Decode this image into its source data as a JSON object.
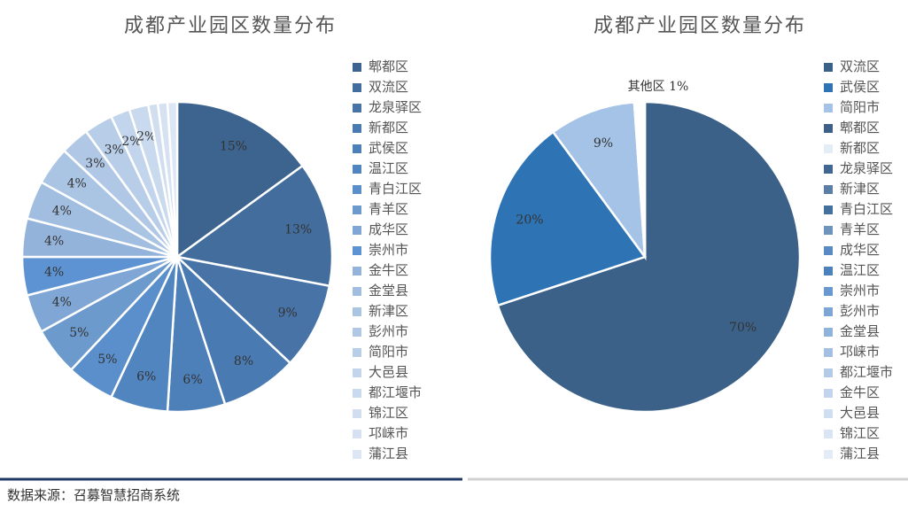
{
  "chart_data": [
    {
      "type": "pie",
      "title": "成都产业园区数量分布",
      "categories": [
        "郫都区",
        "双流区",
        "龙泉驿区",
        "新都区",
        "武侯区",
        "温江区",
        "青白江区",
        "青羊区",
        "成华区",
        "崇州市",
        "金牛区",
        "金堂县",
        "新津区",
        "彭州市",
        "简阳市",
        "大邑县",
        "都江堰市",
        "锦江区",
        "邛崃市",
        "蒲江县"
      ],
      "values": [
        15,
        13,
        9,
        8,
        6,
        6,
        5,
        5,
        4,
        4,
        4,
        4,
        4,
        3,
        3,
        2,
        2,
        1,
        1,
        1
      ],
      "value_labels": [
        "15%",
        "13%",
        "9%",
        "8%",
        "6%",
        "6%",
        "5%",
        "5%",
        "4%",
        "4%",
        "4%",
        "4%",
        "4%",
        "3%",
        "3%",
        "2%",
        "2%",
        null,
        null,
        null
      ],
      "colors": [
        "#3d648f",
        "#426d9c",
        "#4773a6",
        "#4a7ab2",
        "#4d7fb8",
        "#5185bf",
        "#5a8fcb",
        "#6d9acd",
        "#7fa6d4",
        "#5d93d2",
        "#93b3da",
        "#a1bde0",
        "#aac4e4",
        "#b0c8e6",
        "#b8cee8",
        "#c2d5ec",
        "#c9daee",
        "#d0def0",
        "#d6e2f2",
        "#dce6f4"
      ]
    },
    {
      "type": "pie",
      "title": "成都产业园区数量分布",
      "annotation": "其他区 1%",
      "categories": [
        "双流区",
        "武侯区",
        "简阳市",
        "郫都区",
        "新都区",
        "龙泉驿区",
        "新津区",
        "青白江区",
        "青羊区",
        "成华区",
        "温江区",
        "崇州市",
        "彭州市",
        "金堂县",
        "邛崃市",
        "都江堰市",
        "金牛区",
        "大邑县",
        "锦江区",
        "蒲江县"
      ],
      "values": [
        70,
        20,
        9,
        0.2,
        0.1,
        0.1,
        0.05,
        0.05,
        0.05,
        0.05,
        0.05,
        0.05,
        0.05,
        0.05,
        0.05,
        0.05,
        0.05,
        0.05,
        0.05,
        0.05
      ],
      "value_labels": [
        "70%",
        "20%",
        "9%",
        null,
        null,
        null,
        null,
        null,
        null,
        null,
        null,
        null,
        null,
        null,
        null,
        null,
        null,
        null,
        null,
        null
      ],
      "colors": [
        "#3b6188",
        "#2e74b5",
        "#a4c3e6",
        "#3d5f88",
        "#e4ecf6",
        "#3f6792",
        "#5a7ea6",
        "#44709e",
        "#6e93bd",
        "#5a8ac4",
        "#4d81bb",
        "#6898cf",
        "#7ca6d6",
        "#90b3dc",
        "#a3c0e2",
        "#b4cbe7",
        "#c3d5ec",
        "#cfdef1",
        "#dae5f3",
        "#e3ebf6"
      ]
    }
  ],
  "footer": {
    "source": "数据来源：召募智慧招商系统"
  }
}
